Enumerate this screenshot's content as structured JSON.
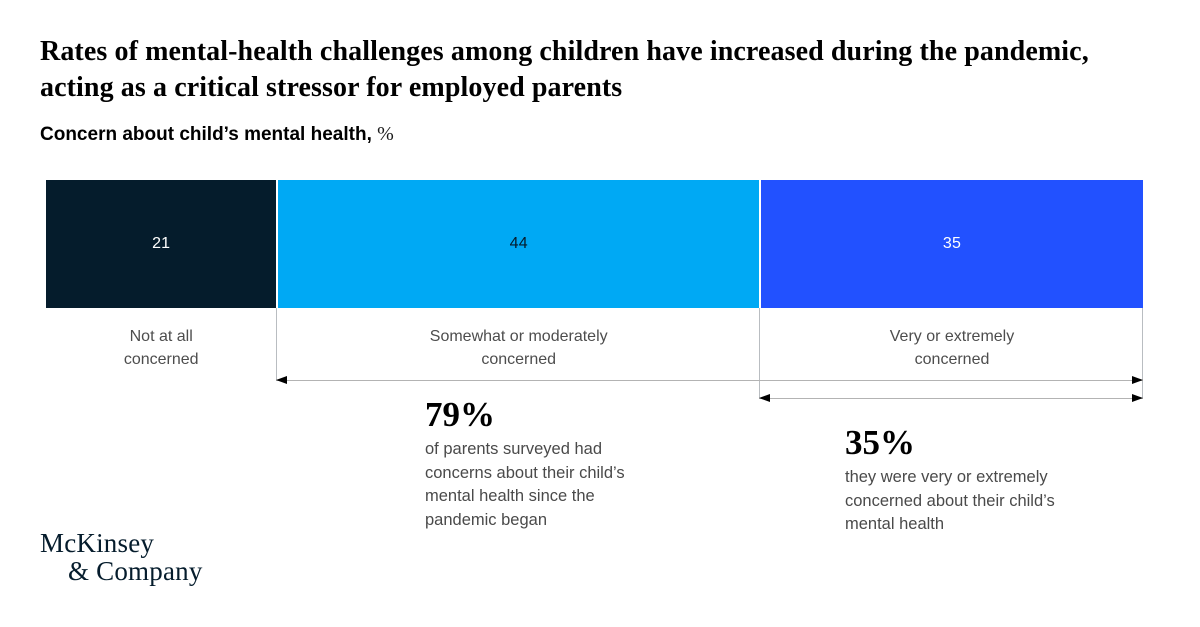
{
  "title": "Rates of mental-health challenges among children have increased during the pandemic, acting as a critical stressor for employed parents",
  "subtitle": {
    "label": "Concern about child’s mental health,",
    "unit": "%"
  },
  "chart_data": {
    "type": "bar",
    "variant": "horizontal-stacked-single-bar",
    "title": "Concern about child’s mental health, %",
    "unit": "%",
    "categories": [
      "Not at all concerned",
      "Somewhat or moderately concerned",
      "Very or extremely concerned"
    ],
    "values": [
      21,
      44,
      35
    ],
    "colors": [
      "#051c2c",
      "#00a9f4",
      "#2251ff"
    ],
    "xlim": [
      0,
      100
    ],
    "grid": false,
    "legend": "none",
    "annotations": [
      {
        "value": "79%",
        "spans_categories": [
          "Somewhat or moderately concerned",
          "Very or extremely concerned"
        ],
        "text": "of parents surveyed had concerns about their child’s mental health since the pandemic began"
      },
      {
        "value": "35%",
        "spans_categories": [
          "Very or extremely concerned"
        ],
        "text": "they were very or extremely concerned about their child’s mental health"
      }
    ]
  },
  "bar": {
    "segments": [
      {
        "value": 21,
        "display_value": "21",
        "color": "#051c2c",
        "text_color": "#ffffff",
        "label_lines": [
          "Not at all",
          "concerned"
        ]
      },
      {
        "value": 44,
        "display_value": "44",
        "color": "#00a9f4",
        "text_color": "#051c2c",
        "label_lines": [
          "Somewhat or moderately",
          "concerned"
        ]
      },
      {
        "value": 35,
        "display_value": "35",
        "color": "#2251ff",
        "text_color": "#ffffff",
        "label_lines": [
          "Very or extremely",
          "concerned"
        ]
      }
    ]
  },
  "callouts": [
    {
      "value": "79%",
      "text": "of parents surveyed had concerns about their child’s mental health since the pandemic began"
    },
    {
      "value": "35%",
      "text": "they were very or extremely concerned about their child’s mental health"
    }
  ],
  "footer": {
    "logo_line1": "McKinsey",
    "logo_line2": "& Company"
  }
}
